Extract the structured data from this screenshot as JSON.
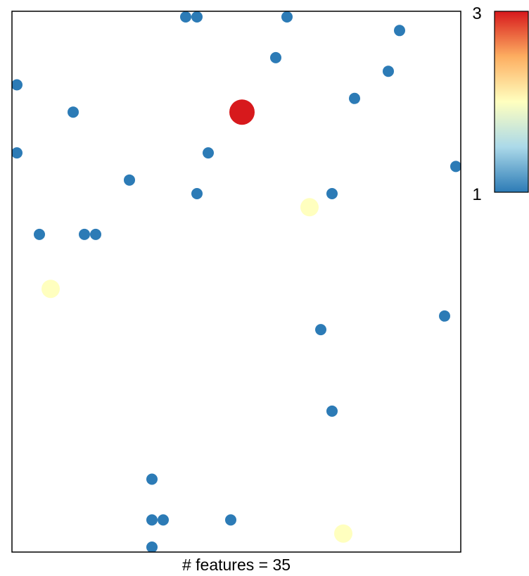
{
  "chart_data": {
    "type": "scatter",
    "title": "",
    "xlabel": "# features = 35",
    "ylabel": "",
    "grid": false,
    "axes_ticks": false,
    "xlim": [
      0,
      40
    ],
    "ylim": [
      0,
      40
    ],
    "colorbar": {
      "min": 1,
      "max": 3,
      "tick_labels": [
        "3",
        "1"
      ],
      "colors": [
        "#2c7bb6",
        "#abd9e9",
        "#ffffbf",
        "#fdae61",
        "#d7191c"
      ]
    },
    "points": [
      {
        "x": 15.5,
        "y": 39.0,
        "value": 1
      },
      {
        "x": 16.5,
        "y": 39.0,
        "value": 1
      },
      {
        "x": 24.5,
        "y": 39.0,
        "value": 1
      },
      {
        "x": 34.5,
        "y": 38.0,
        "value": 1
      },
      {
        "x": 23.5,
        "y": 36.0,
        "value": 1
      },
      {
        "x": 33.5,
        "y": 35.0,
        "value": 1
      },
      {
        "x": 0.5,
        "y": 34.0,
        "value": 1
      },
      {
        "x": 30.5,
        "y": 33.0,
        "value": 1
      },
      {
        "x": 5.5,
        "y": 32.0,
        "value": 1
      },
      {
        "x": 20.5,
        "y": 32.0,
        "value": 3
      },
      {
        "x": 0.5,
        "y": 29.0,
        "value": 1
      },
      {
        "x": 17.5,
        "y": 29.0,
        "value": 1
      },
      {
        "x": 39.5,
        "y": 28.0,
        "value": 1
      },
      {
        "x": 10.5,
        "y": 27.0,
        "value": 1
      },
      {
        "x": 16.5,
        "y": 26.0,
        "value": 1
      },
      {
        "x": 28.5,
        "y": 26.0,
        "value": 1
      },
      {
        "x": 26.5,
        "y": 25.0,
        "value": 2
      },
      {
        "x": 2.5,
        "y": 23.0,
        "value": 1
      },
      {
        "x": 6.5,
        "y": 23.0,
        "value": 1
      },
      {
        "x": 7.5,
        "y": 23.0,
        "value": 1
      },
      {
        "x": 3.5,
        "y": 19.0,
        "value": 2
      },
      {
        "x": 38.5,
        "y": 17.0,
        "value": 1
      },
      {
        "x": 27.5,
        "y": 16.0,
        "value": 1
      },
      {
        "x": 28.5,
        "y": 10.0,
        "value": 1
      },
      {
        "x": 12.5,
        "y": 5.0,
        "value": 1
      },
      {
        "x": 12.5,
        "y": 2.0,
        "value": 1
      },
      {
        "x": 13.5,
        "y": 2.0,
        "value": 1
      },
      {
        "x": 19.5,
        "y": 2.0,
        "value": 1
      },
      {
        "x": 29.5,
        "y": 1.0,
        "value": 2
      },
      {
        "x": 12.5,
        "y": 0.0,
        "value": 1
      }
    ]
  }
}
